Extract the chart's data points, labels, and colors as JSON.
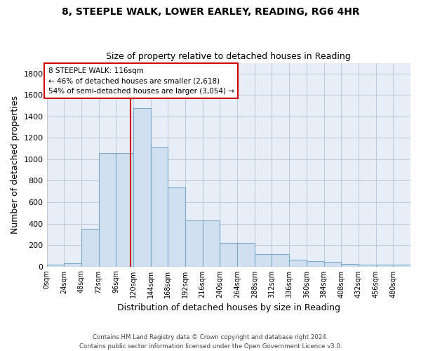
{
  "title1": "8, STEEPLE WALK, LOWER EARLEY, READING, RG6 4HR",
  "title2": "Size of property relative to detached houses in Reading",
  "xlabel": "Distribution of detached houses by size in Reading",
  "ylabel": "Number of detached properties",
  "bar_color": "#d0e0f0",
  "bar_edge_color": "#7aaac8",
  "background_color": "#e8eef8",
  "grid_color": "#c0ccdc",
  "bin_edges": [
    0,
    24,
    48,
    72,
    96,
    120,
    144,
    168,
    192,
    216,
    240,
    264,
    288,
    312,
    336,
    360,
    384,
    408,
    432,
    456,
    480,
    504
  ],
  "bar_heights": [
    15,
    30,
    350,
    1060,
    1060,
    1480,
    1110,
    740,
    430,
    430,
    220,
    220,
    115,
    115,
    60,
    50,
    45,
    25,
    20,
    15,
    15
  ],
  "red_line_x": 116,
  "annotation_line1": "8 STEEPLE WALK: 116sqm",
  "annotation_line2": "← 46% of detached houses are smaller (2,618)",
  "annotation_line3": "54% of semi-detached houses are larger (3,054) →",
  "annotation_box_color": "white",
  "annotation_box_edge": "#cc0000",
  "ylim": [
    0,
    1900
  ],
  "xlim": [
    0,
    504
  ],
  "tick_labels": [
    "0sqm",
    "24sqm",
    "48sqm",
    "72sqm",
    "96sqm",
    "120sqm",
    "144sqm",
    "168sqm",
    "192sqm",
    "216sqm",
    "240sqm",
    "264sqm",
    "288sqm",
    "312sqm",
    "336sqm",
    "360sqm",
    "384sqm",
    "408sqm",
    "432sqm",
    "456sqm",
    "480sqm"
  ],
  "footnote": "Contains HM Land Registry data © Crown copyright and database right 2024.\nContains public sector information licensed under the Open Government Licence v3.0.",
  "yticks": [
    0,
    200,
    400,
    600,
    800,
    1000,
    1200,
    1400,
    1600,
    1800
  ]
}
